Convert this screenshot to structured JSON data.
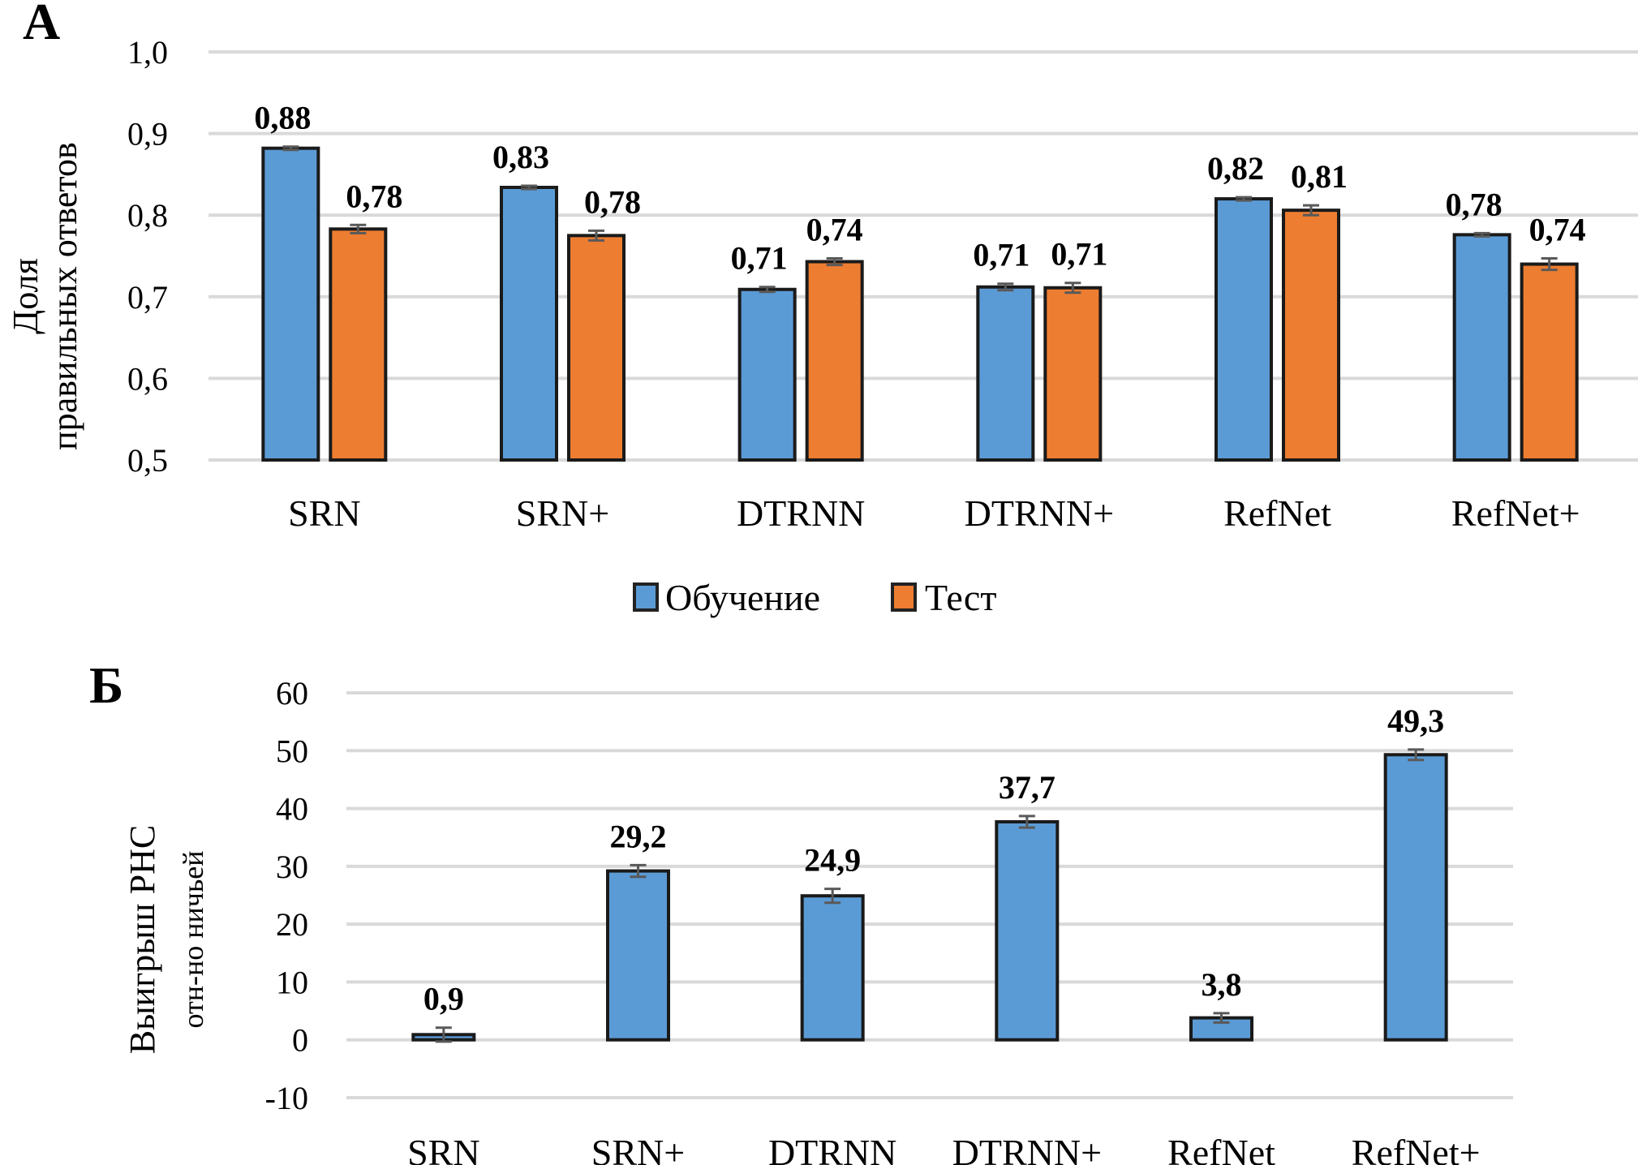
{
  "chart_data": [
    {
      "panel_label": "А",
      "type": "bar",
      "title": "",
      "xlabel": "",
      "ylabel_lines": [
        "Доля",
        "правильных ответов"
      ],
      "categories": [
        "SRN",
        "SRN+",
        "DTRNN",
        "DTRNN+",
        "RefNet",
        "RefNet+"
      ],
      "ylim": [
        0.5,
        1.0
      ],
      "yticks": [
        "0,5",
        "0,6",
        "0,7",
        "0,8",
        "0,9",
        "1,0"
      ],
      "ytick_values": [
        0.5,
        0.6,
        0.7,
        0.8,
        0.9,
        1.0
      ],
      "grid": true,
      "legend_position": "bottom",
      "series": [
        {
          "name": "Обучение",
          "color": "#5b9bd5",
          "values": [
            0.882,
            0.834,
            0.709,
            0.712,
            0.82,
            0.776
          ],
          "labels": [
            "0,88",
            "0,83",
            "0,71",
            "0,71",
            "0,82",
            "0,78"
          ],
          "errors": [
            0.002,
            0.002,
            0.003,
            0.004,
            0.002,
            0.002
          ]
        },
        {
          "name": "Тест",
          "color": "#ed7d31",
          "values": [
            0.783,
            0.775,
            0.743,
            0.711,
            0.806,
            0.74
          ],
          "labels": [
            "0,78",
            "0,78",
            "0,74",
            "0,71",
            "0,81",
            "0,74"
          ],
          "errors": [
            0.005,
            0.006,
            0.004,
            0.006,
            0.006,
            0.007
          ]
        }
      ]
    },
    {
      "panel_label": "Б",
      "type": "bar",
      "title": "",
      "xlabel": "",
      "ylabel_lines": [
        "Выигрыш РНС",
        "отн-но ничьей"
      ],
      "categories": [
        "SRN",
        "SRN+",
        "DTRNN",
        "DTRNN+",
        "RefNet",
        "RefNet+"
      ],
      "ylim": [
        -10,
        60
      ],
      "yticks": [
        "-10",
        "0",
        "10",
        "20",
        "30",
        "40",
        "50",
        "60"
      ],
      "ytick_values": [
        -10,
        0,
        10,
        20,
        30,
        40,
        50,
        60
      ],
      "grid": true,
      "series": [
        {
          "name": "Выигрыш",
          "color": "#5b9bd5",
          "values": [
            0.9,
            29.2,
            24.9,
            37.7,
            3.8,
            49.3
          ],
          "labels": [
            "0,9",
            "29,2",
            "24,9",
            "37,7",
            "3,8",
            "49,3"
          ],
          "errors": [
            1.2,
            1.0,
            1.2,
            1.0,
            0.8,
            0.9
          ]
        }
      ]
    }
  ]
}
